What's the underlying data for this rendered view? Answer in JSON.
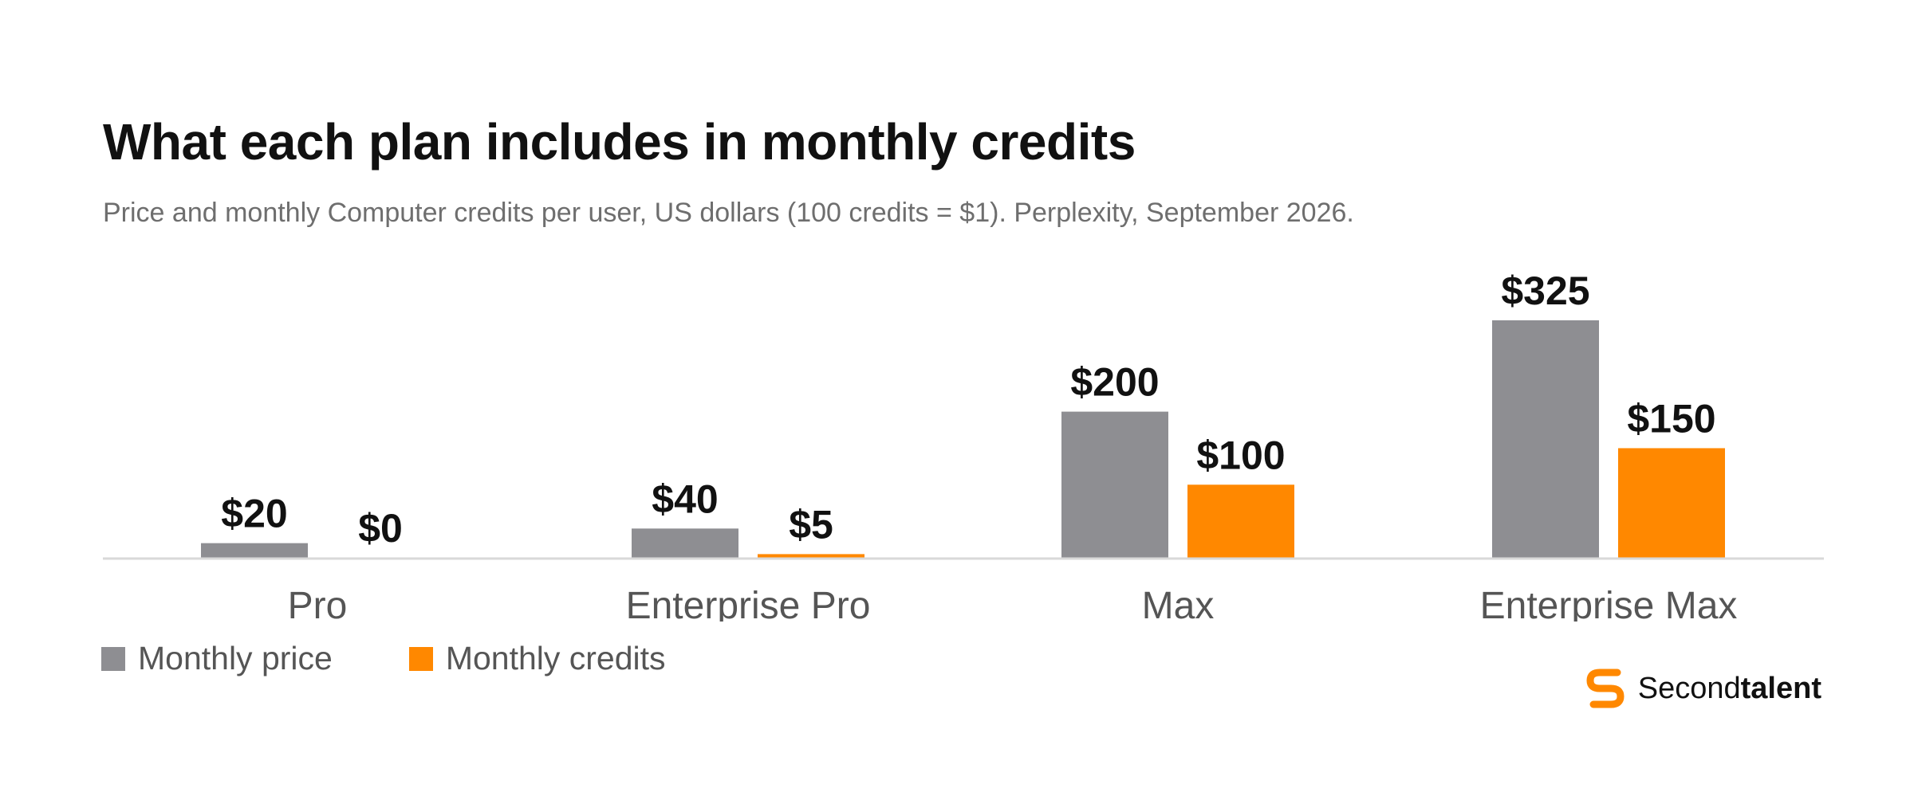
{
  "title": "What each plan includes in monthly credits",
  "subtitle": "Price and monthly Computer credits per user, US dollars (100 credits = $1). Perplexity, September 2026.",
  "colors": {
    "price": "#8e8e92",
    "credits": "#ff8800",
    "axis": "#d9d9d9",
    "brand": "#ff8800"
  },
  "brand": {
    "name_light": "Second",
    "name_bold": "talent",
    "icon": "secondtalent-logo-icon"
  },
  "chart_data": {
    "type": "bar",
    "categories": [
      "Pro",
      "Enterprise Pro",
      "Max",
      "Enterprise Max"
    ],
    "series": [
      {
        "name": "Monthly price",
        "values": [
          20,
          40,
          200,
          325
        ],
        "labels": [
          "$20",
          "$40",
          "$200",
          "$325"
        ]
      },
      {
        "name": "Monthly credits",
        "values": [
          0,
          5,
          100,
          150
        ],
        "labels": [
          "$0",
          "$5",
          "$100",
          "$150"
        ]
      }
    ],
    "ylim": [
      0,
      325
    ],
    "grid": false,
    "legend_position": "bottom-left"
  }
}
